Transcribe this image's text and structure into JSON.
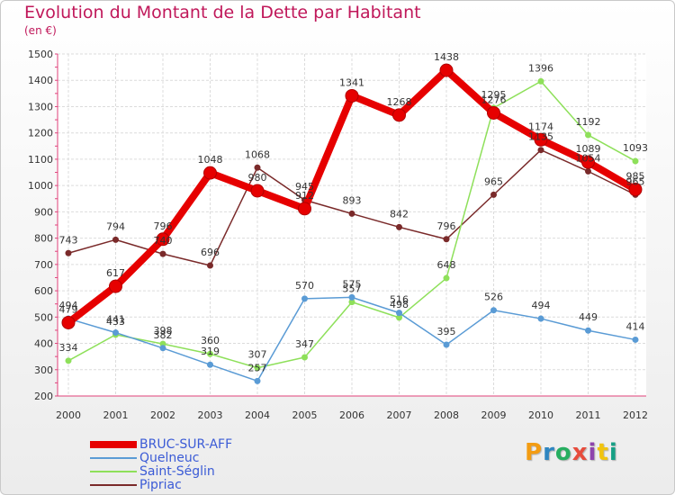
{
  "title": "Evolution du Montant de la Dette par Habitant",
  "subtitle": "(en €)",
  "logo": {
    "text": "Proxiti",
    "letters": [
      {
        "ch": "P",
        "color": "#f39c12"
      },
      {
        "ch": "r",
        "color": "#2e86c1"
      },
      {
        "ch": "o",
        "color": "#27ae60"
      },
      {
        "ch": "x",
        "color": "#e74c3c"
      },
      {
        "ch": "i",
        "color": "#8e44ad"
      },
      {
        "ch": "t",
        "color": "#f1c40f"
      },
      {
        "ch": "i",
        "color": "#16a085"
      }
    ]
  },
  "chart_data": {
    "type": "line",
    "title": "Evolution du Montant de la Dette par Habitant",
    "ylabel": "(en €)",
    "xlabel": "",
    "x": [
      "2000",
      "2001",
      "2002",
      "2003",
      "2004",
      "2005",
      "2006",
      "2007",
      "2008",
      "2009",
      "2010",
      "2011",
      "2012"
    ],
    "ylim": [
      200,
      1500
    ],
    "yticks": [
      200,
      300,
      400,
      500,
      600,
      700,
      800,
      900,
      1000,
      1100,
      1200,
      1300,
      1400,
      1500
    ],
    "grid": true,
    "legend": "bottom-left",
    "series": [
      {
        "name": "Pipriac",
        "color": "#7a2a2a",
        "values": [
          743,
          794,
          740,
          696,
          1068,
          945,
          893,
          842,
          796,
          965,
          1135,
          1054,
          965
        ]
      },
      {
        "name": "Saint-Séglin",
        "color": "#8ee05a",
        "values": [
          334,
          433,
          398,
          360,
          307,
          347,
          557,
          498,
          648,
          1295,
          1396,
          1192,
          1093
        ]
      },
      {
        "name": "Quelneuc",
        "color": "#5a9bd5",
        "values": [
          494,
          441,
          382,
          319,
          257,
          570,
          575,
          516,
          395,
          526,
          494,
          449,
          414
        ]
      },
      {
        "name": "BRUC-SUR-AFF",
        "color": "#e60000",
        "values": [
          479,
          617,
          796,
          1048,
          980,
          912,
          1341,
          1268,
          1438,
          1276,
          1174,
          1089,
          985
        ]
      }
    ]
  }
}
